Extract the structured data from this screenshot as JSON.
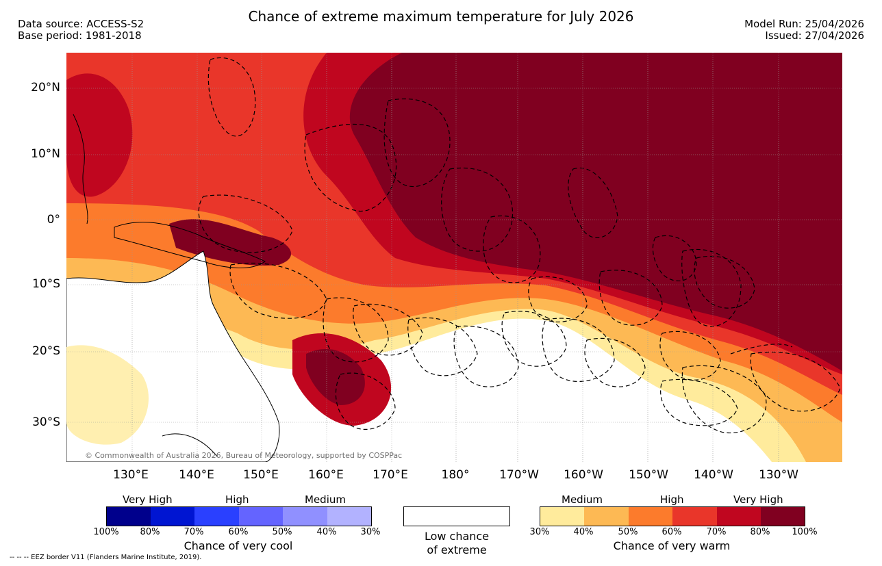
{
  "title": "Chance of extreme maximum temperature for July 2026",
  "header": {
    "data_source": "Data source: ACCESS-S2",
    "base_period": "Base period: 1981-2018",
    "model_run": "Model Run: 25/04/2026",
    "issued": "Issued: 27/04/2026"
  },
  "map": {
    "lat_labels": [
      "20°N",
      "10°N",
      "0°",
      "10°S",
      "20°S",
      "30°S"
    ],
    "lon_labels": [
      "130°E",
      "140°E",
      "150°E",
      "160°E",
      "170°E",
      "180°",
      "170°W",
      "160°W",
      "150°W",
      "140°W",
      "130°W"
    ],
    "copyright": "© Commonwealth of Australia 2026, Bureau of Meteorology, supported by COSPPac"
  },
  "legend_cool": {
    "categories": [
      "Very High",
      "High",
      "Medium"
    ],
    "ticks": [
      "100%",
      "80%",
      "70%",
      "60%",
      "50%",
      "40%",
      "30%"
    ],
    "colors": [
      "#00008c",
      "#0015d2",
      "#2a40ff",
      "#6464ff",
      "#9090ff",
      "#b2b2ff"
    ],
    "caption": "Chance of very cool"
  },
  "legend_low": {
    "caption_line1": "Low chance",
    "caption_line2": "of extreme"
  },
  "legend_warm": {
    "categories": [
      "Medium",
      "High",
      "Very High"
    ],
    "ticks": [
      "30%",
      "40%",
      "50%",
      "60%",
      "70%",
      "80%",
      "100%"
    ],
    "colors": [
      "#ffeb9c",
      "#fdb954",
      "#fc7b2c",
      "#e9362a",
      "#c0061f",
      "#800020"
    ],
    "caption": "Chance of very warm"
  },
  "footnote": "-- -- -- EEZ border V11 (Flanders Marine Institute, 2019)."
}
